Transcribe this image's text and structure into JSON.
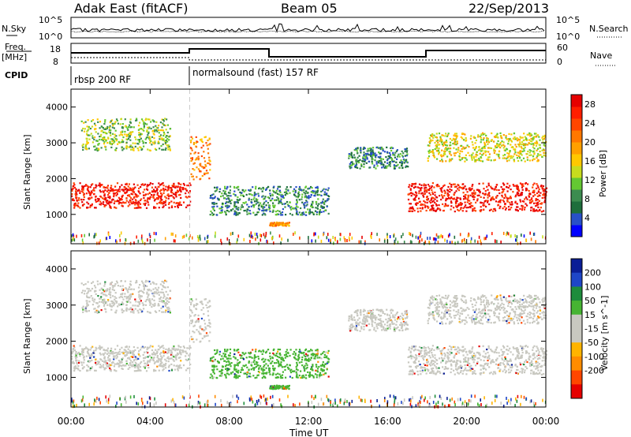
{
  "header": {
    "station": "Adak East (fitACF)",
    "beam": "Beam 05",
    "date": "22/Sep/2013"
  },
  "noise_panel": {
    "left_label": "N.Sky",
    "right_label": "N.Search",
    "left_ticks": [
      "10^5",
      "10^0"
    ],
    "right_ticks": [
      "10^5",
      "10^0"
    ]
  },
  "freq_panel": {
    "left_label_1": "Freq.",
    "left_label_2": "[MHz]",
    "left_ticks": [
      "18",
      "8"
    ],
    "right_label": "Nave",
    "right_ticks": [
      "60",
      "0"
    ]
  },
  "cpid": {
    "label": "CPID",
    "modes": [
      {
        "name": "rbsp 200 RF",
        "start": "00:00",
        "end": "06:00"
      },
      {
        "name": "normalsound (fast) 157 RF",
        "start": "06:00",
        "end": "24:00"
      }
    ]
  },
  "time_axis": {
    "label": "Time UT",
    "ticks": [
      "00:00",
      "04:00",
      "08:00",
      "12:00",
      "16:00",
      "20:00",
      "00:00"
    ]
  },
  "range_axis": {
    "label": "Slant Range [km]",
    "ticks": [
      "1000",
      "2000",
      "3000",
      "4000"
    ]
  },
  "power_scale": {
    "label": "Power [dB]",
    "ticks": [
      "4",
      "8",
      "12",
      "16",
      "20",
      "24",
      "28"
    ],
    "colors": [
      "#0000ff",
      "#2850c8",
      "#1e6e3c",
      "#3c8c50",
      "#64c832",
      "#c8dc1e",
      "#ffc800",
      "#ffa000",
      "#ff7800",
      "#ff4600",
      "#ff1e00",
      "#e60000"
    ]
  },
  "velocity_scale": {
    "label": "Velocity [m s^-1]",
    "ticks": [
      "200",
      "100",
      "50",
      "15",
      "-15",
      "-50",
      "-100",
      "-200"
    ],
    "colors": [
      "#0a1e96",
      "#1e46c8",
      "#1e8c3c",
      "#46b432",
      "#c8c8c0",
      "#c8c8c0",
      "#ffb400",
      "#ff8c00",
      "#ff4600",
      "#e60000"
    ]
  },
  "chart_data": {
    "type": "heatmap",
    "panels": [
      "power",
      "velocity"
    ],
    "x_range_hours": [
      0,
      24
    ],
    "y_range_km": [
      180,
      4500
    ],
    "echo_regions": [
      {
        "start": "00:00",
        "end": "06:00",
        "range_km": [
          1200,
          1900
        ],
        "power_dB": 28,
        "velocity": "-15 to 15"
      },
      {
        "start": "00:30",
        "end": "05:00",
        "range_km": [
          2800,
          3700
        ],
        "power_dB": 12,
        "velocity": "-15 to 15"
      },
      {
        "start": "06:00",
        "end": "07:00",
        "range_km": [
          2000,
          3200
        ],
        "power_dB": 20,
        "velocity": "-15 to 15"
      },
      {
        "start": "07:00",
        "end": "13:00",
        "range_km": [
          1000,
          1800
        ],
        "power_dB": 8,
        "velocity": "50"
      },
      {
        "start": "10:00",
        "end": "11:00",
        "range_km": [
          700,
          800
        ],
        "power_dB": 20,
        "velocity": "50"
      },
      {
        "start": "14:00",
        "end": "17:00",
        "range_km": [
          2300,
          2900
        ],
        "power_dB": 8,
        "velocity": "-15 to 15"
      },
      {
        "start": "17:00",
        "end": "24:00",
        "range_km": [
          1100,
          1900
        ],
        "power_dB": 28,
        "velocity": "-15 to 15"
      },
      {
        "start": "18:00",
        "end": "24:00",
        "range_km": [
          2500,
          3300
        ],
        "power_dB": 16,
        "velocity": "-15 to 15"
      }
    ]
  }
}
